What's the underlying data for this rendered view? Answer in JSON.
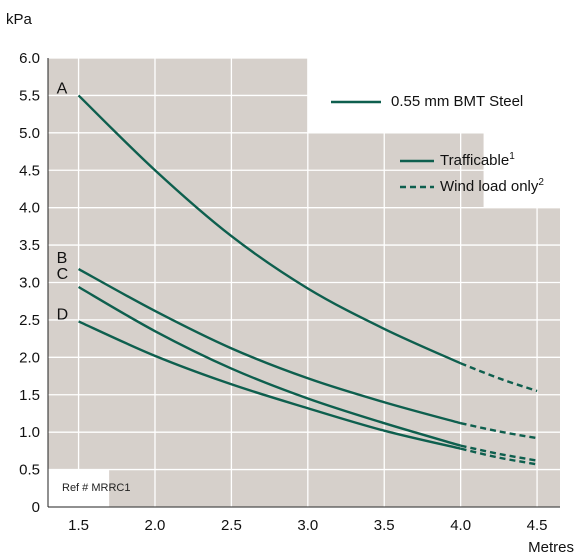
{
  "chart_data": {
    "type": "line",
    "ylabel": "kPa",
    "xlabel": "Metres",
    "xlim": [
      1.3,
      4.65
    ],
    "ylim": [
      0,
      6.0
    ],
    "x_ticks": [
      "1.5",
      "2.0",
      "2.5",
      "3.0",
      "3.5",
      "4.0",
      "4.5"
    ],
    "y_ticks": [
      "0",
      "0.5",
      "1.0",
      "1.5",
      "2.0",
      "2.5",
      "3.0",
      "3.5",
      "4.0",
      "4.5",
      "5.0",
      "5.5",
      "6.0"
    ],
    "grid": true,
    "colors": {
      "line": "#0e5f4e",
      "plot_bg": "#d6d0cb",
      "grid": "#ffffff",
      "panel": "#ffffff"
    },
    "series": [
      {
        "name": "A",
        "trafficable": [
          [
            1.5,
            5.5
          ],
          [
            2.0,
            4.5
          ],
          [
            2.5,
            3.62
          ],
          [
            3.0,
            2.92
          ],
          [
            3.5,
            2.38
          ],
          [
            4.0,
            1.92
          ]
        ],
        "wind_only": [
          [
            4.0,
            1.92
          ],
          [
            4.25,
            1.72
          ],
          [
            4.5,
            1.55
          ]
        ]
      },
      {
        "name": "B",
        "trafficable": [
          [
            1.5,
            3.18
          ],
          [
            2.0,
            2.62
          ],
          [
            2.5,
            2.12
          ],
          [
            3.0,
            1.72
          ],
          [
            3.5,
            1.4
          ],
          [
            4.0,
            1.12
          ]
        ],
        "wind_only": [
          [
            4.0,
            1.12
          ],
          [
            4.25,
            1.01
          ],
          [
            4.5,
            0.92
          ]
        ]
      },
      {
        "name": "C",
        "trafficable": [
          [
            1.5,
            2.94
          ],
          [
            2.0,
            2.35
          ],
          [
            2.5,
            1.85
          ],
          [
            3.0,
            1.45
          ],
          [
            3.5,
            1.12
          ],
          [
            4.0,
            0.82
          ]
        ],
        "wind_only": [
          [
            4.0,
            0.82
          ],
          [
            4.25,
            0.71
          ],
          [
            4.5,
            0.62
          ]
        ]
      },
      {
        "name": "D",
        "trafficable": [
          [
            1.5,
            2.48
          ],
          [
            2.0,
            2.02
          ],
          [
            2.5,
            1.64
          ],
          [
            3.0,
            1.32
          ],
          [
            3.5,
            1.02
          ],
          [
            4.0,
            0.78
          ]
        ],
        "wind_only": [
          [
            4.0,
            0.78
          ],
          [
            4.25,
            0.66
          ],
          [
            4.5,
            0.57
          ]
        ]
      }
    ],
    "legend": {
      "title": "0.55 mm BMT Steel",
      "solid_label": "Trafficable",
      "solid_sup": "1",
      "dashed_label": "Wind load only",
      "dashed_sup": "2"
    },
    "ref": "Ref # MRRC1"
  }
}
